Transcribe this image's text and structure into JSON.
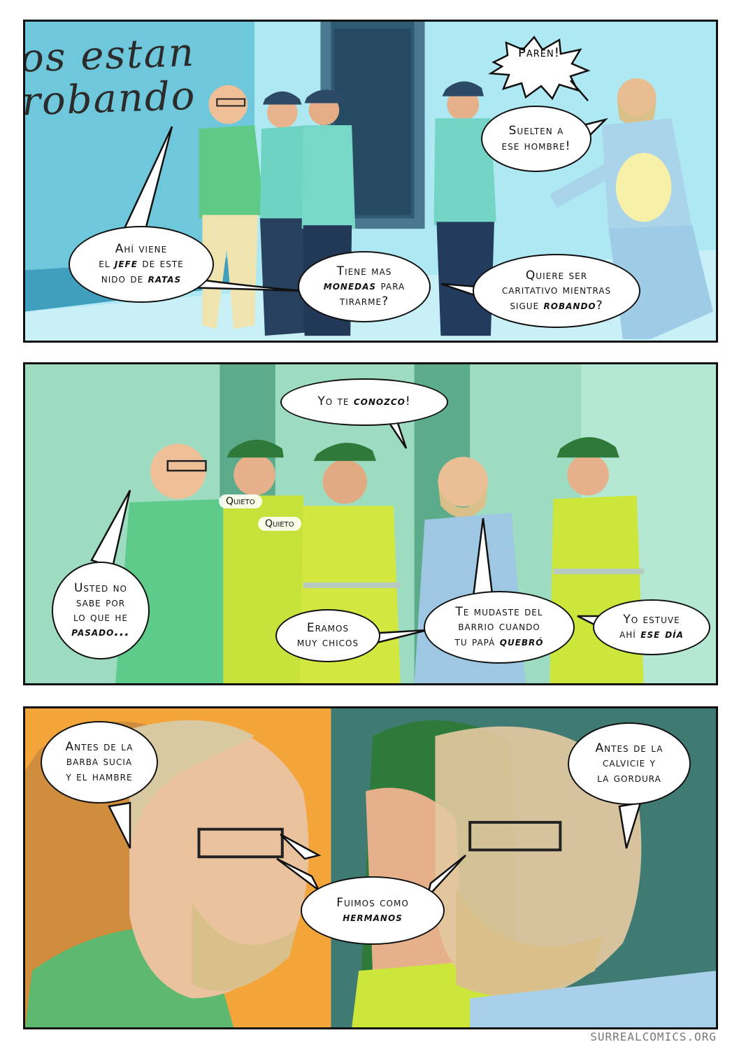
{
  "panel1": {
    "graffiti_line1": "os estan",
    "graffiti_line2": "robando",
    "shout": "Paren!",
    "bubble_suelten": [
      "Suelten a",
      "ese hombre!"
    ],
    "bubble_ahi": {
      "l1": "Ahí viene",
      "l2a": "el ",
      "l2b": "jefe",
      "l2c": " de este",
      "l3a": "nido de ",
      "l3b": "ratas"
    },
    "bubble_tiene": {
      "l1": "Tiene mas",
      "l2a": "monedas",
      "l2b": " para",
      "l3": "tirarme?"
    },
    "bubble_quiere": {
      "l1": "Quiere ser",
      "l2": "caritativo mientras",
      "l3a": "sigue ",
      "l3b": "robando",
      "l3c": "?"
    }
  },
  "panel2": {
    "bubble_yo": {
      "a": "Yo te ",
      "b": "conozco",
      "c": "!"
    },
    "whisper1": "Quieto",
    "whisper2": "Quieto",
    "bubble_usted": {
      "l1": "Usted no",
      "l2": "sabe por",
      "l3": "lo que he",
      "l4": "pasado..."
    },
    "bubble_eramos": [
      "Eramos",
      "muy chicos"
    ],
    "bubble_mudaste": {
      "l1": "Te mudaste del",
      "l2": "barrio cuando",
      "l3a": "tu papá ",
      "l3b": "quebró"
    },
    "bubble_estuve": {
      "l1": "Yo estuve",
      "l2a": "ahí ",
      "l2b": "ese día"
    }
  },
  "panel3": {
    "bubble_barba": [
      "Antes de la",
      "barba sucia",
      "y el hambre"
    ],
    "bubble_calvicie": [
      "Antes de la",
      "calvicie y",
      "la gordura"
    ],
    "bubble_fuimos": {
      "l1": "Fuimos como",
      "l2": "hermanos"
    }
  },
  "credit": "SURREALCOMICS.ORG",
  "colors": {
    "panel1_bg": "#9fe0ea",
    "panel2_bg": "#8fd7b8",
    "panel3_left": "#f4a53a",
    "panel3_right": "#3f7a73"
  }
}
